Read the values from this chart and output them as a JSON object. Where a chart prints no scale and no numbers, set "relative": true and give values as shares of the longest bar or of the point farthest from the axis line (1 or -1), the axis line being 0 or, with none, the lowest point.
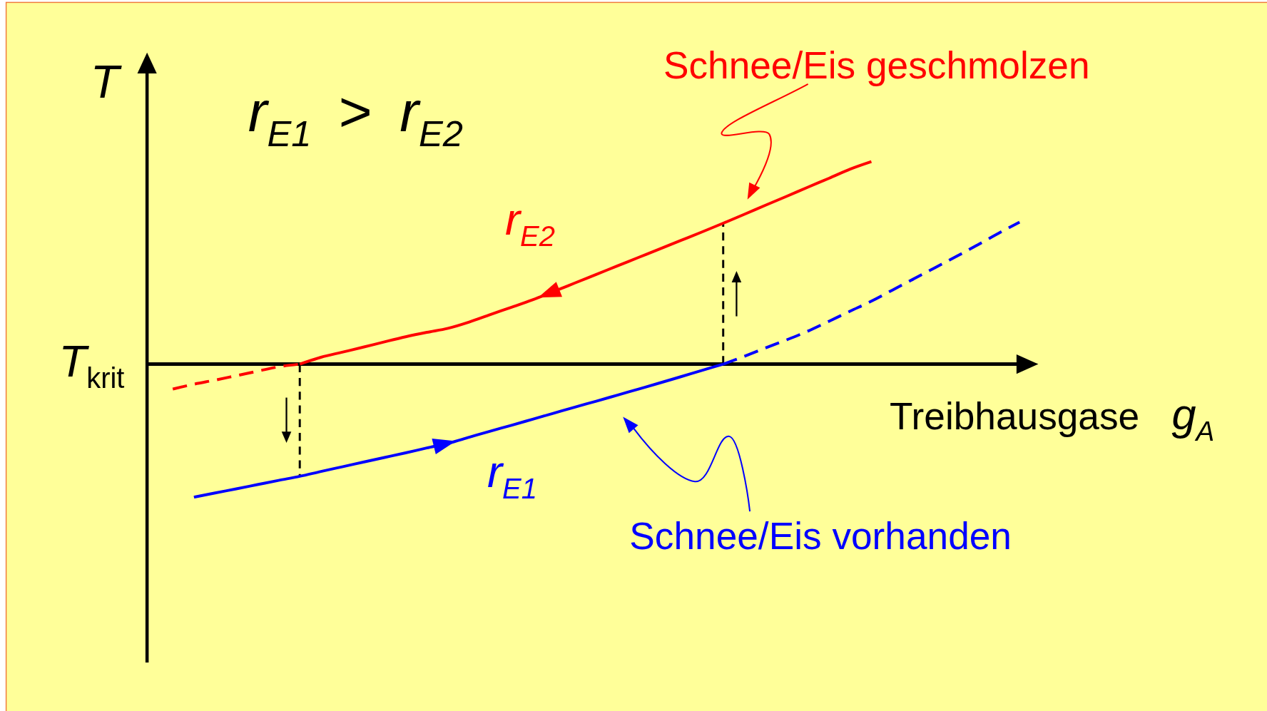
{
  "chart_data": {
    "type": "line",
    "relative": true,
    "xlabel": "Treibhausgase g$_{A}$",
    "ylabel": "T",
    "categories": [
      null,
      null,
      null,
      null,
      null,
      null,
      null,
      null,
      null,
      null,
      null,
      null,
      null,
      null,
      null,
      null,
      null,
      null,
      null,
      null,
      null,
      null,
      null,
      null,
      null,
      null,
      null,
      null,
      null,
      null,
      null,
      null,
      null,
      null,
      null,
      null,
      null,
      null,
      null,
      null,
      null
    ],
    "series": [
      {
        "color": "#ff0000",
        "line_style": "dashed",
        "values": [
          -0.123,
          -0.099,
          -0.079,
          -0.057,
          -0.035,
          -0.013,
          0,
          null,
          null,
          null,
          null,
          null,
          null,
          null,
          null,
          null,
          null,
          null,
          null,
          null,
          null,
          null,
          null,
          null,
          null,
          null,
          null,
          null,
          null,
          null,
          null,
          null,
          null,
          null,
          null,
          null,
          null,
          null,
          null,
          null,
          null
        ]
      },
      {
        "name": "r$_{E2}$",
        "color": "#ff0000",
        "line_style": "solid",
        "values": [
          null,
          null,
          null,
          null,
          null,
          null,
          0,
          0.034,
          0.059,
          0.084,
          0.11,
          0.135,
          0.157,
          0.177,
          0.208,
          0.245,
          0.281,
          0.318,
          0.359,
          0.401,
          0.443,
          0.485,
          0.527,
          0.569,
          0.611,
          0.653,
          0.696,
          0.74,
          0.785,
          0.829,
          0.874,
          0.918,
          0.963,
          1,
          null,
          null,
          null,
          null,
          null,
          null,
          null
        ]
      },
      {
        "name": "r$_{E1}$",
        "color": "#0000ff",
        "line_style": "solid",
        "values": [
          null,
          -0.657,
          -0.636,
          -0.616,
          -0.595,
          -0.574,
          -0.554,
          -0.53,
          -0.507,
          -0.484,
          -0.461,
          -0.438,
          -0.414,
          -0.391,
          -0.361,
          -0.331,
          -0.302,
          -0.272,
          -0.242,
          -0.212,
          -0.183,
          -0.153,
          -0.123,
          -0.093,
          -0.062,
          -0.031,
          0,
          null,
          null,
          null,
          null,
          null,
          null,
          null,
          null,
          null,
          null,
          null,
          null,
          null,
          null
        ]
      },
      {
        "color": "#0000ff",
        "line_style": "dashed",
        "values": [
          null,
          null,
          null,
          null,
          null,
          null,
          null,
          null,
          null,
          null,
          null,
          null,
          null,
          null,
          null,
          null,
          null,
          null,
          null,
          null,
          null,
          null,
          null,
          null,
          null,
          null,
          0,
          0.039,
          0.08,
          0.12,
          0.163,
          0.212,
          0.262,
          0.311,
          0.366,
          0.421,
          0.476,
          0.531,
          0.588,
          0.646,
          0.701
        ]
      }
    ],
    "ref_lines": [
      {
        "axis": "y",
        "value": 0,
        "label": "T$_{krit}$"
      }
    ],
    "annotations": [
      "r$_{E1}$ > r$_{E2}$",
      "Schnee/Eis geschmolzen",
      "Schnee/Eis vorhanden"
    ]
  }
}
